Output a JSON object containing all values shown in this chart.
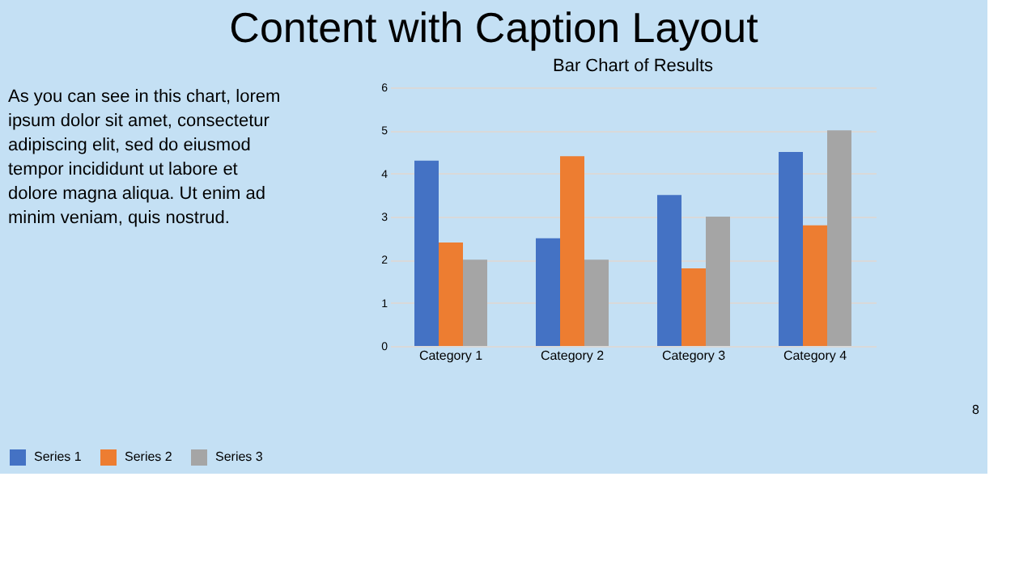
{
  "chart_data": {
    "type": "bar",
    "title": "Content with Caption Layout",
    "subtitle": "Bar Chart of Results",
    "categories": [
      "Category 1",
      "Category 2",
      "Category 3",
      "Category 4"
    ],
    "series": [
      {
        "name": "Series 1",
        "color": "#4472c4",
        "values": [
          4.3,
          2.5,
          3.5,
          4.5
        ]
      },
      {
        "name": "Series 2",
        "color": "#ed7d31",
        "values": [
          2.4,
          4.4,
          1.8,
          2.8
        ]
      },
      {
        "name": "Series 3",
        "color": "#a5a5a5",
        "values": [
          2,
          2,
          3,
          5
        ]
      }
    ],
    "ylim": [
      0,
      6
    ],
    "yticks": [
      0,
      1,
      2,
      3,
      4,
      5,
      6
    ],
    "grid": "y",
    "legend": "bottom",
    "annotations": [
      "As you can see in this chart, lorem\nipsum dolor sit amet, consectetur\nadipiscing elit, sed do eiusmod\ntempor incididunt ut labore et\ndolore magna aliqua. Ut enim ad\nminim veniam, quis nostrud.",
      "8"
    ]
  }
}
